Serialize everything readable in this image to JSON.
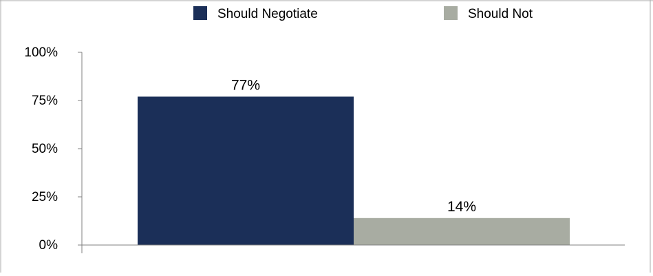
{
  "chart_data": {
    "type": "bar",
    "categories": [
      ""
    ],
    "series": [
      {
        "name": "Should Negotiate",
        "values": [
          77
        ],
        "color": "#1b2f58",
        "data_label": "77%"
      },
      {
        "name": "Should Not",
        "values": [
          14
        ],
        "color": "#a8aca2",
        "data_label": "14%"
      }
    ],
    "title": "",
    "xlabel": "",
    "ylabel": "",
    "ylim": [
      0,
      100
    ],
    "y_ticks": [
      {
        "value": 0,
        "label": "0%"
      },
      {
        "value": 25,
        "label": "25%"
      },
      {
        "value": 50,
        "label": "50%"
      },
      {
        "value": 75,
        "label": "75%"
      },
      {
        "value": 100,
        "label": "100%"
      }
    ],
    "grid": false,
    "legend_position": "top"
  }
}
